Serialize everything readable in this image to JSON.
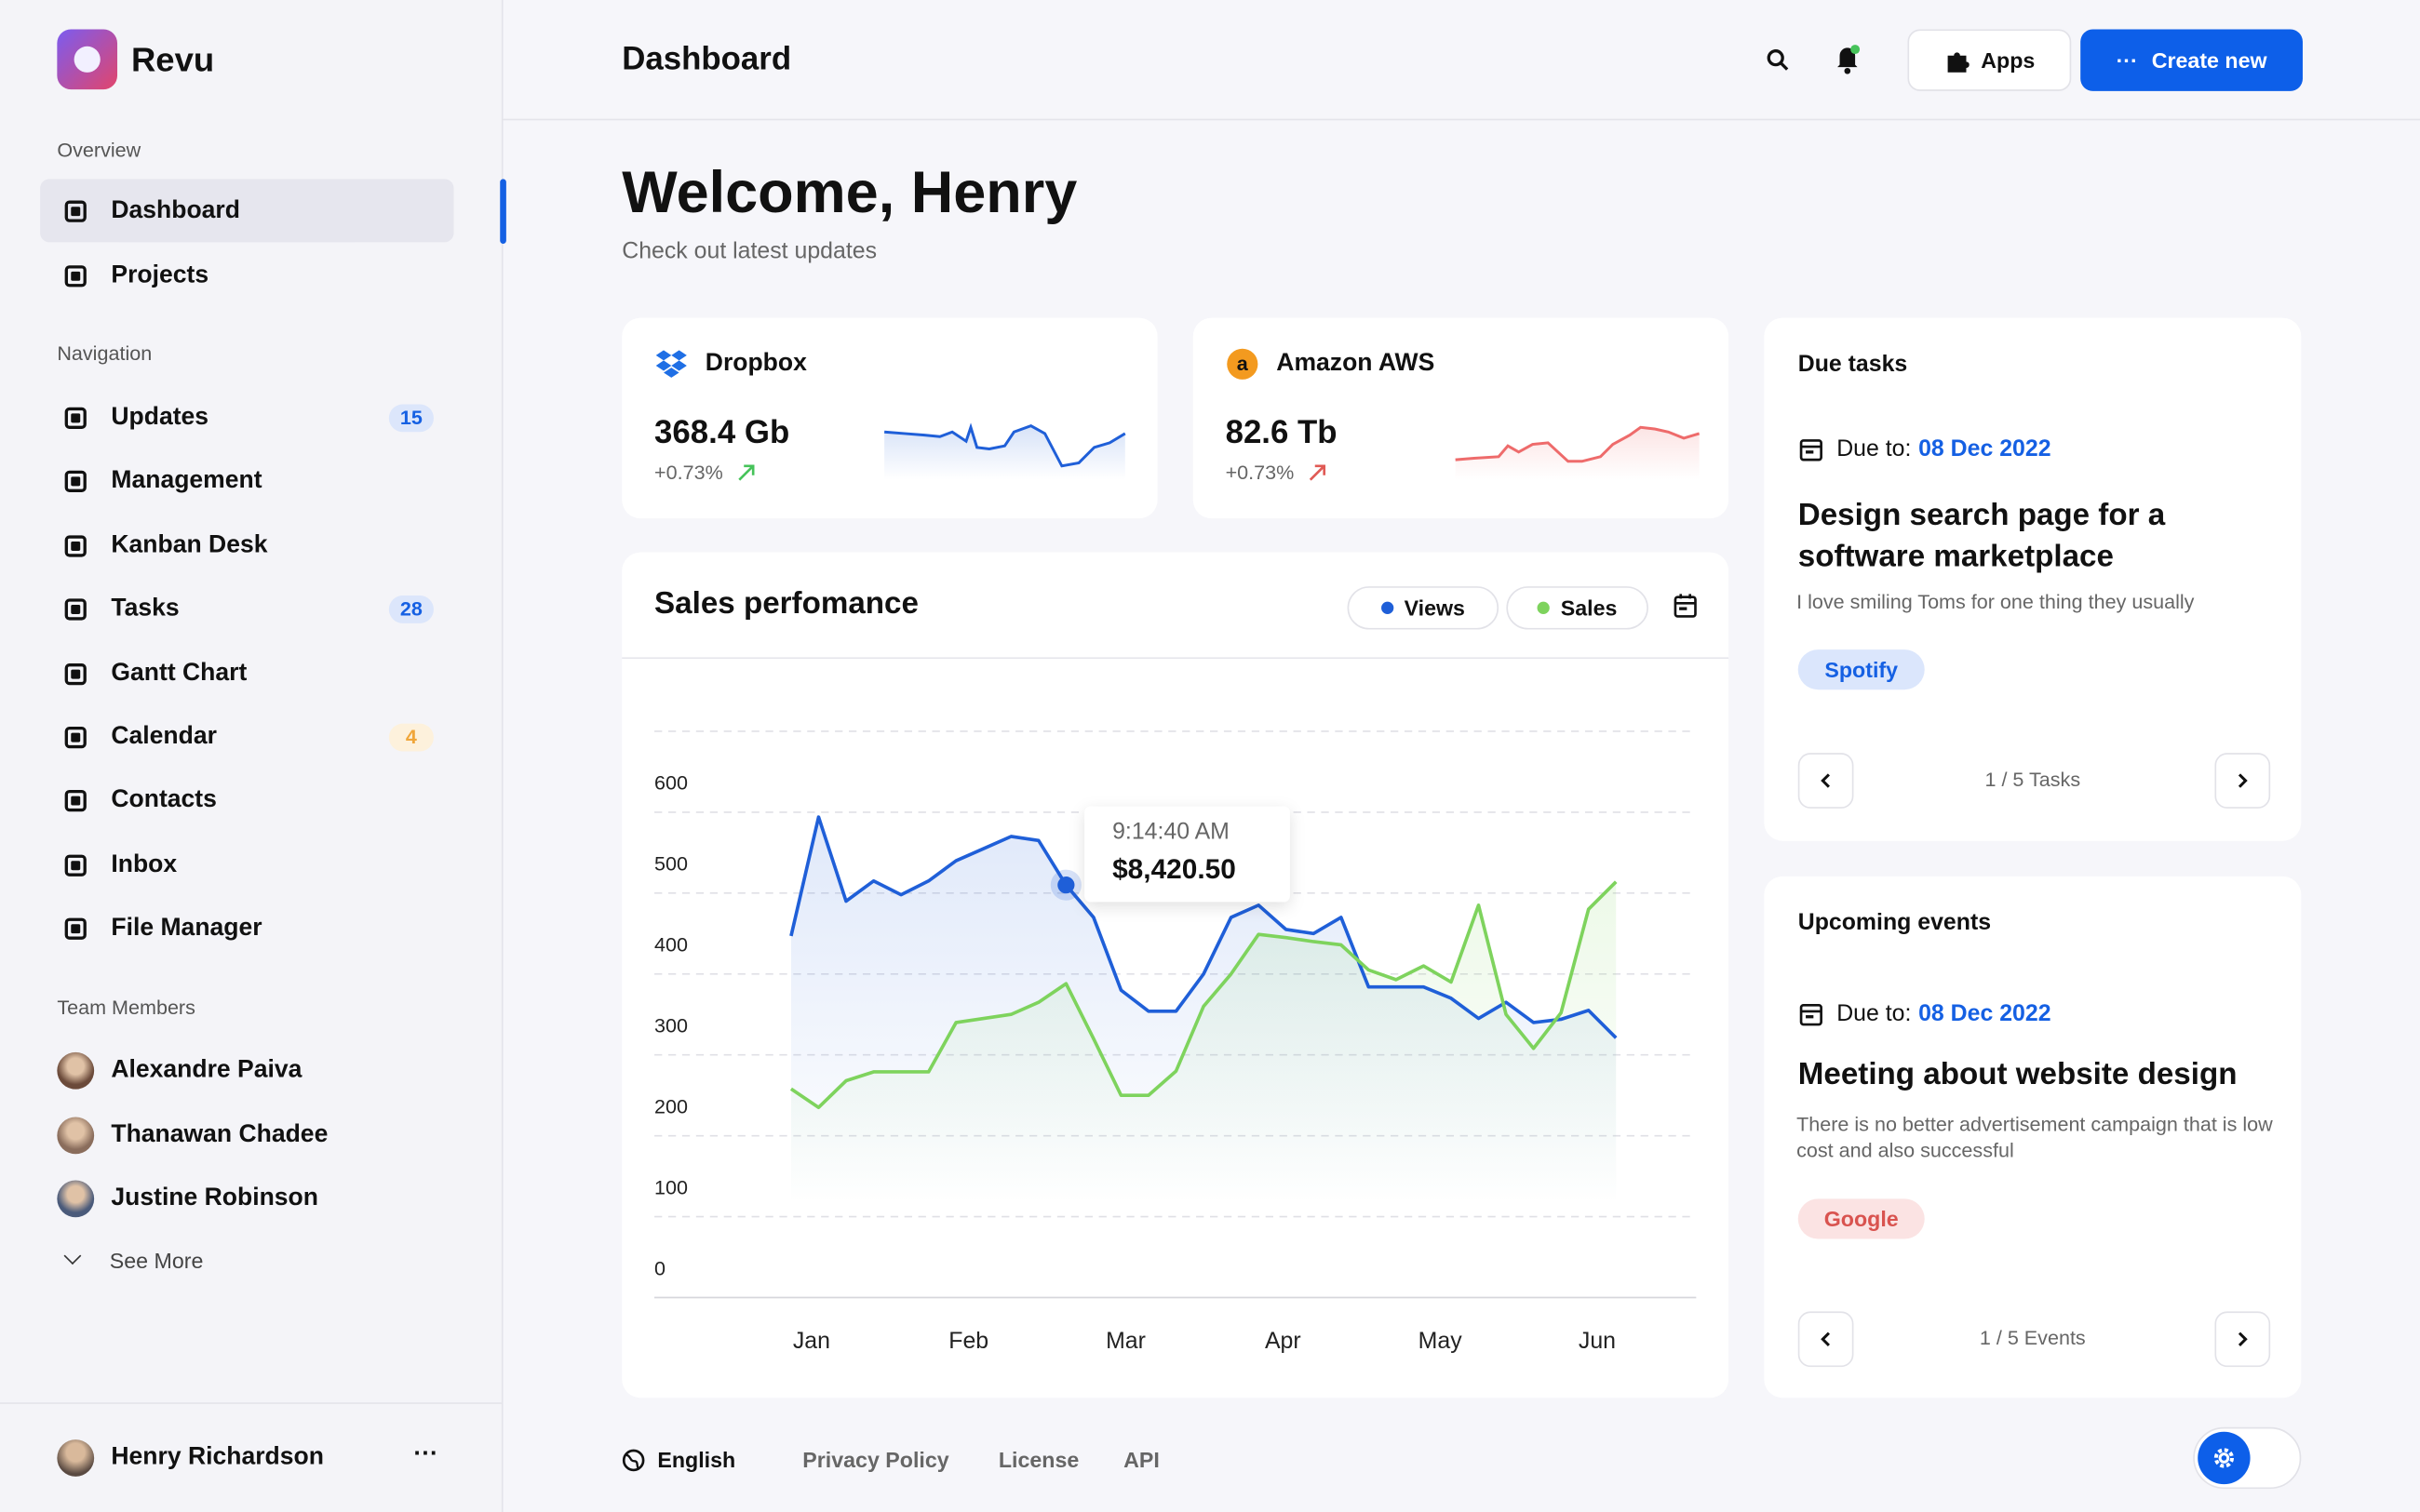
{
  "sidebar": {
    "brand": "Revu",
    "overview": {
      "label": "Overview",
      "items": [
        {
          "label": "Dashboard"
        },
        {
          "label": "Projects"
        }
      ]
    },
    "navigation": {
      "label": "Navigation",
      "items": [
        {
          "label": "Updates",
          "badge": 15
        },
        {
          "label": "Management"
        },
        {
          "label": "Kanban Desk"
        },
        {
          "label": "Tasks",
          "badge": 28
        },
        {
          "label": "Gantt Chart"
        },
        {
          "label": "Calendar",
          "badge": 4
        },
        {
          "label": "Contacts"
        },
        {
          "label": "Inbox"
        },
        {
          "label": "File Manager"
        }
      ]
    },
    "team": {
      "label": "Team Members",
      "members": [
        "Alexandre Paiva",
        "Thanawan Chadee",
        "Justine Robinson"
      ],
      "more": "See More"
    },
    "user": "Henry Richardson"
  },
  "header": {
    "title": "Dashboard",
    "apps": "Apps",
    "create": "Create new"
  },
  "welcome": {
    "title": "Welcome, Henry",
    "subtitle": "Check out latest updates"
  },
  "storage": [
    {
      "name": "Dropbox",
      "amount": "368.4 Gb",
      "change": "+0.73%"
    },
    {
      "name": "Amazon AWS",
      "amount": "82.6 Tb",
      "change": "+0.73%"
    }
  ],
  "chart_data": {
    "type": "line",
    "title": "Sales perfomance",
    "x": [
      0.87,
      1.045,
      1.22,
      1.395,
      1.57,
      1.745,
      1.92,
      2.095,
      2.27,
      2.445,
      2.62,
      2.795,
      2.97,
      3.145,
      3.32,
      3.495,
      3.67,
      3.845,
      4.02,
      4.195,
      4.37,
      4.545,
      4.72,
      4.895,
      5.07,
      5.245,
      5.42,
      5.595,
      5.77,
      5.945,
      6.12
    ],
    "xlim": [
      0,
      6.63
    ],
    "xticks": [
      {
        "value": 1,
        "label": "Jan"
      },
      {
        "value": 2,
        "label": "Feb"
      },
      {
        "value": 3,
        "label": "Mar"
      },
      {
        "value": 4,
        "label": "Apr"
      },
      {
        "value": 5,
        "label": "May"
      },
      {
        "value": 6,
        "label": "Jun"
      }
    ],
    "ylim": [
      0,
      700
    ],
    "yticks": [
      0,
      100,
      200,
      300,
      400,
      500,
      600
    ],
    "grid": true,
    "series": [
      {
        "name": "Views",
        "color": "#1f5fd8",
        "values": [
          447,
          594,
          490,
          515,
          498,
          515,
          540,
          555,
          570,
          565,
          510,
          470,
          380,
          354,
          354,
          400,
          470,
          485,
          455,
          450,
          470,
          384,
          384,
          384,
          370,
          345,
          365,
          340,
          344,
          355,
          321
        ]
      },
      {
        "name": "Sales",
        "color": "#7ed35d",
        "values": [
          258,
          235,
          268,
          279,
          279,
          279,
          340,
          345,
          350,
          365,
          388,
          320,
          250,
          250,
          280,
          360,
          400,
          449,
          445,
          440,
          436,
          405,
          393,
          410,
          390,
          485,
          350,
          308,
          352,
          480,
          514
        ]
      }
    ],
    "tooltip": {
      "time": "9:14:40 AM",
      "value": "$8,420.50"
    }
  },
  "due_tasks": {
    "title": "Due tasks",
    "due_label": "Due to:",
    "due_date": "08 Dec 2022",
    "task": "Design search page for a software marketplace",
    "description": "I love smiling Toms for one thing they usually",
    "tag": "Spotify",
    "pager": "1 / 5 Tasks"
  },
  "upcoming_events": {
    "title": "Upcoming events",
    "due_label": "Due to:",
    "due_date": "08 Dec 2022",
    "event": "Meeting about website design",
    "description": "There is no better advertisement campaign that is low cost and also successful",
    "tag": "Google",
    "pager": "1 / 5 Events"
  },
  "footer": {
    "language": "English",
    "links": [
      "Privacy Policy",
      "License",
      "API"
    ]
  }
}
